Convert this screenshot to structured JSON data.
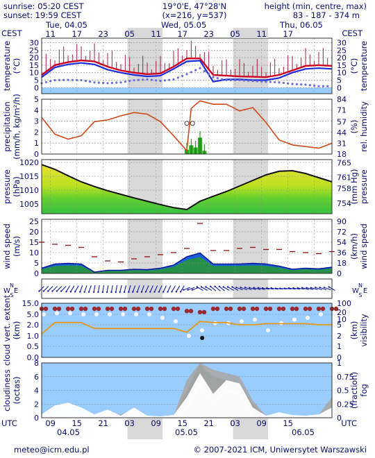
{
  "header": {
    "sunrise": "sunrise: 05:20 CEST",
    "sunset": "sunset: 19:59 CEST",
    "coords": "19°0'E, 47°28'N",
    "grid": "(x=216, y=537)",
    "height_title": "height (min, centre, max)",
    "height_values": "83 - 187 - 374 m"
  },
  "top_axis": {
    "tz_left": "CEST",
    "tz_right": "CEST",
    "dates": [
      "Tue, 04.05",
      "Wed, 05.05",
      "Thu, 06.05"
    ],
    "hours": [
      "11",
      "17",
      "23",
      "05",
      "11",
      "17",
      "23",
      "05",
      "11",
      "17"
    ]
  },
  "bottom_axis": {
    "tz_left": "UTC",
    "tz_right": "UTC",
    "hours": [
      "09",
      "15",
      "21",
      "03",
      "09",
      "15",
      "21",
      "03",
      "09",
      "15"
    ],
    "dates": [
      "04.05",
      "05.05",
      "06.05"
    ]
  },
  "footer": {
    "email": "meteo@icm.edu.pl",
    "copyright": "© 2007-2021 ICM, Uniwersytet Warszawski"
  },
  "colors": {
    "text": "#0a0a6e",
    "night": "#d8d8d8",
    "sky": "#99ccff",
    "temp_line": "#cc0022",
    "temp_low": "#1c2cd8",
    "humidity": "#d04818",
    "precip": "#2aa81e",
    "visibility": "#e89818"
  },
  "chart_data": [
    {
      "type": "line",
      "panel": "temperature",
      "ylabel_left": "temperature",
      "unit_left": "(°C)",
      "ylabel_right": "temperature",
      "unit_right": "(°C)",
      "ylim": [
        -4,
        33
      ],
      "yticks": [
        0,
        5,
        10,
        15,
        20,
        25,
        30
      ],
      "x_hours": [
        0,
        3,
        6,
        9,
        12,
        15,
        18,
        21,
        24,
        27,
        30,
        33,
        36,
        39,
        42,
        45,
        48,
        51,
        54,
        57,
        60,
        63,
        66
      ],
      "series": [
        {
          "role": "temperature",
          "values": [
            8.5,
            15,
            17,
            18.2,
            17.5,
            14,
            11.5,
            10,
            9,
            9.5,
            14,
            19.5,
            19.5,
            8.5,
            8,
            7.5,
            7.3,
            7,
            8.5,
            11.5,
            14.5,
            15,
            14.5
          ]
        },
        {
          "role": "temperature-min",
          "values": [
            7,
            13.5,
            15.5,
            16.5,
            15.5,
            12,
            10,
            8.5,
            7.5,
            8,
            12.5,
            17.5,
            18,
            4,
            5.5,
            5.5,
            5,
            5,
            6.5,
            10,
            12.5,
            13,
            12.5
          ]
        },
        {
          "role": "dew-point",
          "values": [
            3,
            5,
            5.2,
            5,
            3.5,
            3,
            3.5,
            5,
            5.5,
            4.5,
            5.5,
            9,
            13,
            7,
            5,
            5,
            4.5,
            4,
            3.5,
            2.5,
            2,
            1,
            1
          ]
        }
      ]
    },
    {
      "type": "bar",
      "panel": "precipitation",
      "ylabel_left": "precipitation",
      "unit_left": "(mm/h, kg/m²/h)",
      "ylabel_right": "rel. humidity",
      "unit_right": "(%)",
      "ylim": [
        0,
        5
      ],
      "yticks": [
        0,
        1,
        2,
        3,
        4,
        5
      ],
      "y2ticks": [
        18,
        31,
        44,
        57,
        71,
        84
      ],
      "precipitation": {
        "x_hours": [
          33,
          34,
          35,
          36,
          37
        ],
        "values": [
          0.4,
          0.8,
          0.6,
          1.5,
          0.3
        ]
      },
      "humidity": {
        "x_hours": [
          0,
          3,
          6,
          9,
          12,
          15,
          18,
          21,
          24,
          27,
          30,
          33,
          34,
          36,
          39,
          42,
          45,
          48,
          51,
          54,
          57,
          60,
          63,
          66
        ],
        "values": [
          62,
          42,
          36,
          40,
          57,
          59,
          64,
          68,
          66,
          57,
          40,
          22,
          73,
          82,
          78,
          78,
          70,
          74,
          56,
          35,
          29,
          27,
          25,
          31
        ]
      }
    },
    {
      "type": "area",
      "panel": "pressure",
      "ylabel_left": "pressure",
      "unit_left": "(hPa)",
      "ylabel_right": "pressure",
      "unit_right": "(mm Hg)",
      "ylim": [
        1001.5,
        1021
      ],
      "yticks": [
        1005,
        1010,
        1015,
        1020
      ],
      "y2ticks": [
        754,
        758,
        761,
        765
      ],
      "x_hours": [
        0,
        3,
        6,
        9,
        12,
        15,
        18,
        21,
        24,
        27,
        30,
        33,
        36,
        39,
        42,
        45,
        48,
        51,
        54,
        57,
        60,
        63,
        66
      ],
      "values": [
        1019.2,
        1017.5,
        1015.2,
        1013,
        1011.3,
        1009.8,
        1008.5,
        1007.2,
        1006,
        1004.8,
        1003.7,
        1003,
        1006,
        1007.8,
        1009.5,
        1011.5,
        1013.5,
        1015.5,
        1016.8,
        1017,
        1016,
        1014.5,
        1013
      ]
    },
    {
      "type": "line",
      "panel": "wind",
      "ylabel_left": "wind speed",
      "unit_left": "(m/s)",
      "ylabel_right": "wind speed",
      "unit_right": "(km/h)",
      "ylim": [
        0,
        26
      ],
      "yticks": [
        0,
        5,
        10,
        15,
        20,
        25
      ],
      "y2ticks": [
        0,
        18,
        36,
        54,
        72,
        90
      ],
      "x_hours": [
        0,
        3,
        6,
        9,
        12,
        15,
        18,
        21,
        24,
        27,
        30,
        33,
        36,
        39,
        42,
        45,
        48,
        51,
        54,
        57,
        60,
        63,
        66
      ],
      "series": [
        {
          "role": "wind-speed",
          "values": [
            2.5,
            4.5,
            4.8,
            4.5,
            0.6,
            1.5,
            1.5,
            2,
            1.8,
            2.5,
            4,
            8,
            9.8,
            4.5,
            4.5,
            4.5,
            4.8,
            4.5,
            3.5,
            2,
            2.5,
            2.2,
            3
          ]
        },
        {
          "role": "gusts",
          "values": [
            15,
            14,
            13.5,
            12.5,
            8,
            6,
            5.5,
            7,
            8,
            9,
            10,
            12,
            24,
            11,
            11,
            12,
            12.5,
            11.5,
            11.5,
            10.5,
            10,
            9.5,
            10.5
          ]
        }
      ]
    },
    {
      "type": "scatter",
      "panel": "wind-direction",
      "ylabel_left": "N W E S",
      "ylabel_right": "N W E S",
      "x_hours": [
        0,
        3,
        6,
        9,
        12,
        15,
        18,
        21,
        24,
        27,
        30,
        33,
        36,
        39,
        42,
        45,
        48,
        51,
        54,
        57,
        60,
        63,
        66
      ],
      "direction_deg": [
        225,
        225,
        210,
        200,
        190,
        190,
        195,
        200,
        205,
        205,
        210,
        250,
        300,
        310,
        300,
        290,
        285,
        280,
        275,
        280,
        285,
        290,
        300
      ]
    },
    {
      "type": "line",
      "panel": "cloud-visibility",
      "ylabel_left": "cloud vert. extent",
      "unit_left": "(km)",
      "ylabel_right": "visibility",
      "unit_right": "(km)",
      "yticks_left": [
        "0.0",
        "0.5",
        "1.0",
        "2.0",
        "5.0",
        "15.0"
      ],
      "yticks_right": [
        "0",
        "1",
        "2",
        "5",
        "10",
        "20",
        "100"
      ],
      "x_hours": [
        0,
        3,
        6,
        9,
        12,
        15,
        18,
        21,
        24,
        27,
        30,
        33,
        36,
        39,
        42,
        45,
        48,
        51,
        54,
        57,
        60,
        63,
        66
      ],
      "series": [
        {
          "role": "cloud-top",
          "values": [
            10,
            10,
            10,
            10,
            10,
            10,
            10,
            10,
            10,
            10,
            10,
            8,
            7,
            10,
            10,
            10,
            10,
            10,
            10,
            10,
            10,
            10,
            10
          ]
        },
        {
          "role": "cloud-base",
          "values": [
            5,
            6,
            6,
            5,
            5,
            5,
            5,
            5,
            5,
            4,
            3,
            1,
            1.5,
            2.5,
            2.5,
            3,
            3.5,
            1.5,
            2.5,
            3.5,
            4,
            5,
            5
          ]
        },
        {
          "role": "visibility",
          "values": [
            2.5,
            7,
            7,
            7,
            4,
            4,
            4,
            4,
            4,
            4,
            4,
            3,
            8,
            7,
            7,
            5,
            5,
            6,
            6,
            6,
            6,
            5,
            5
          ]
        }
      ]
    },
    {
      "type": "area",
      "panel": "cloudiness",
      "ylabel_left": "cloudiness",
      "unit_left": "(octas)",
      "ylabel_right": "fog",
      "unit_right": "(fraction)",
      "ylim": [
        0,
        8
      ],
      "yticks": [
        0,
        2,
        4,
        6,
        8
      ],
      "y2ticks": [
        "0",
        "0.25",
        "0.5",
        "0.75",
        "1"
      ],
      "x_hours": [
        0,
        3,
        6,
        9,
        12,
        15,
        18,
        21,
        24,
        27,
        30,
        33,
        36,
        39,
        42,
        45,
        48,
        51,
        54,
        57,
        60,
        63,
        66
      ],
      "series": [
        {
          "role": "low-clouds",
          "values": [
            0.5,
            1.8,
            2.2,
            1.5,
            0.5,
            1.2,
            0.3,
            1.5,
            0.3,
            0.2,
            0.4,
            3,
            6.5,
            3.5,
            5.5,
            5,
            1.5,
            0.3,
            0.8,
            0.4,
            0.3,
            0.5,
            1.5
          ]
        },
        {
          "role": "mid-clouds",
          "values": [
            0.2,
            0.3,
            0.2,
            0.5,
            0.3,
            0.8,
            0.5,
            1.2,
            0.3,
            0.1,
            0.3,
            5.5,
            8,
            7,
            6.5,
            6,
            2.5,
            0.3,
            0.2,
            0.3,
            0.2,
            0.5,
            3
          ]
        },
        {
          "role": "high-clouds",
          "values": [
            0.1,
            0.2,
            0.1,
            0.3,
            0.1,
            0.2,
            0.1,
            0.3,
            0.2,
            0.1,
            0.2,
            4,
            7.8,
            6,
            5.5,
            4.5,
            2,
            0.2,
            0.1,
            0.2,
            0.1,
            0.3,
            1.5
          ]
        }
      ]
    }
  ]
}
